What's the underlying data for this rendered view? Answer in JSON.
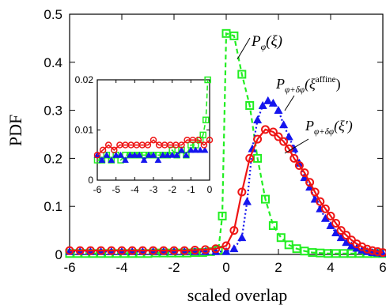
{
  "chart_data": [
    {
      "type": "line",
      "role": "main",
      "xlabel": "scaled overlap",
      "ylabel": "PDF",
      "xlim": [
        -6,
        6
      ],
      "ylim": [
        0,
        0.5
      ],
      "xticks": [
        -6,
        -4,
        -2,
        0,
        2,
        4,
        6
      ],
      "yticks": [
        0,
        0.1,
        0.2,
        0.3,
        0.4,
        0.5
      ],
      "xtick_labels": [
        "-6",
        "-4",
        "-2",
        "0",
        "2",
        "4",
        "6"
      ],
      "ytick_labels": [
        "0",
        "0.1",
        "0.2",
        "0.3",
        "0.4",
        "0.5"
      ],
      "grid": false,
      "series": [
        {
          "id": "green",
          "color": "#22ee22",
          "marker": "square",
          "line": "dashed",
          "x": [
            -6,
            -5.7,
            -5.4,
            -5.1,
            -4.8,
            -4.5,
            -4.2,
            -3.9,
            -3.6,
            -3.3,
            -3.0,
            -2.7,
            -2.4,
            -2.1,
            -1.8,
            -1.5,
            -1.2,
            -0.9,
            -0.6,
            -0.3,
            -0.15,
            0.0,
            0.3,
            0.6,
            0.9,
            1.2,
            1.5,
            1.8,
            2.1,
            2.4,
            2.7,
            3.0,
            3.3,
            3.6,
            3.9,
            4.2,
            4.5,
            4.8,
            5.1,
            5.4,
            5.7,
            6.0
          ],
          "y": [
            0.002,
            0.002,
            0.002,
            0.002,
            0.002,
            0.002,
            0.002,
            0.002,
            0.002,
            0.002,
            0.002,
            0.003,
            0.003,
            0.003,
            0.003,
            0.003,
            0.004,
            0.004,
            0.006,
            0.009,
            0.08,
            0.46,
            0.455,
            0.375,
            0.31,
            0.2,
            0.115,
            0.06,
            0.035,
            0.02,
            0.012,
            0.007,
            0.004,
            0.003,
            0.002,
            0.002,
            0.002,
            0.002,
            0.002,
            0.002,
            0.002,
            0.002
          ]
        },
        {
          "id": "blue",
          "color": "#1515ee",
          "marker": "triangle",
          "line": "dotted",
          "x": [
            -6,
            -5.6,
            -5.2,
            -4.8,
            -4.4,
            -4.0,
            -3.6,
            -3.2,
            -2.8,
            -2.4,
            -2.0,
            -1.6,
            -1.2,
            -0.8,
            -0.4,
            0.0,
            0.3,
            0.6,
            0.8,
            1.0,
            1.2,
            1.4,
            1.6,
            1.8,
            2.0,
            2.2,
            2.4,
            2.6,
            2.8,
            3.0,
            3.2,
            3.4,
            3.6,
            3.8,
            4.0,
            4.2,
            4.4,
            4.6,
            4.8,
            5.0,
            5.2,
            5.4,
            5.6,
            5.8,
            6.0
          ],
          "y": [
            0.006,
            0.006,
            0.006,
            0.006,
            0.006,
            0.006,
            0.006,
            0.006,
            0.006,
            0.006,
            0.006,
            0.006,
            0.006,
            0.006,
            0.006,
            0.006,
            0.012,
            0.035,
            0.11,
            0.22,
            0.28,
            0.31,
            0.32,
            0.315,
            0.3,
            0.27,
            0.245,
            0.22,
            0.19,
            0.16,
            0.14,
            0.115,
            0.095,
            0.075,
            0.06,
            0.045,
            0.035,
            0.025,
            0.018,
            0.013,
            0.009,
            0.006,
            0.004,
            0.003,
            0.002
          ]
        },
        {
          "id": "red",
          "color": "#ee1515",
          "marker": "circle",
          "line": "solid",
          "x": [
            -6,
            -5.6,
            -5.2,
            -4.8,
            -4.4,
            -4.0,
            -3.6,
            -3.2,
            -2.8,
            -2.4,
            -2.0,
            -1.6,
            -1.2,
            -0.8,
            -0.4,
            0.0,
            0.3,
            0.6,
            0.9,
            1.2,
            1.5,
            1.8,
            2.0,
            2.2,
            2.4,
            2.6,
            2.8,
            3.0,
            3.2,
            3.4,
            3.6,
            3.8,
            4.0,
            4.2,
            4.4,
            4.6,
            4.8,
            5.0,
            5.2,
            5.4,
            5.6,
            5.8,
            6.0
          ],
          "y": [
            0.008,
            0.008,
            0.008,
            0.008,
            0.008,
            0.008,
            0.008,
            0.008,
            0.008,
            0.008,
            0.008,
            0.008,
            0.009,
            0.01,
            0.012,
            0.018,
            0.05,
            0.13,
            0.2,
            0.24,
            0.26,
            0.255,
            0.245,
            0.235,
            0.22,
            0.2,
            0.185,
            0.17,
            0.15,
            0.13,
            0.11,
            0.095,
            0.08,
            0.065,
            0.05,
            0.04,
            0.03,
            0.022,
            0.016,
            0.011,
            0.008,
            0.006,
            0.004
          ]
        }
      ],
      "annotations": [
        {
          "text": "P",
          "sub": "φ",
          "rest": "(ξ)",
          "sup": ""
        },
        {
          "text": "P",
          "sub": "φ+δφ",
          "rest": "(ξ",
          "sup": "affine",
          "close": ")"
        },
        {
          "text": "P",
          "sub": "φ+δφ",
          "rest": "(ξ′)",
          "sup": ""
        }
      ]
    },
    {
      "type": "line",
      "role": "inset",
      "xlim": [
        -6,
        0
      ],
      "ylim": [
        0,
        0.02
      ],
      "xticks": [
        -6,
        -5,
        -4,
        -3,
        -2,
        -1,
        0
      ],
      "yticks": [
        0,
        0.01,
        0.02
      ],
      "xtick_labels": [
        "-6",
        "-5",
        "-4",
        "-3",
        "-2",
        "-1",
        "0"
      ],
      "ytick_labels": [
        "0",
        "0.01",
        "0.02"
      ],
      "series": [
        {
          "id": "green",
          "color": "#22ee22",
          "marker": "square",
          "line": "dashed",
          "x": [
            -6,
            -5.75,
            -5.5,
            -5.25,
            -5.0,
            -4.75,
            -4.5,
            -4.25,
            -4.0,
            -3.75,
            -3.5,
            -3.25,
            -3.0,
            -2.75,
            -2.5,
            -2.25,
            -2.0,
            -1.75,
            -1.5,
            -1.25,
            -1.0,
            -0.75,
            -0.5,
            -0.35,
            -0.2,
            -0.1
          ],
          "y": [
            0.004,
            0.004,
            0.005,
            0.004,
            0.005,
            0.004,
            0.005,
            0.005,
            0.005,
            0.005,
            0.005,
            0.005,
            0.005,
            0.005,
            0.005,
            0.005,
            0.006,
            0.005,
            0.006,
            0.005,
            0.007,
            0.007,
            0.008,
            0.009,
            0.012,
            0.02
          ]
        },
        {
          "id": "blue",
          "color": "#1515ee",
          "marker": "triangle",
          "line": "dotted",
          "x": [
            -6,
            -5.75,
            -5.5,
            -5.25,
            -5.0,
            -4.75,
            -4.5,
            -4.25,
            -4.0,
            -3.75,
            -3.5,
            -3.25,
            -3.0,
            -2.75,
            -2.5,
            -2.25,
            -2.0,
            -1.75,
            -1.5,
            -1.25,
            -1.0,
            -0.75,
            -0.5,
            -0.25
          ],
          "y": [
            0.005,
            0.004,
            0.005,
            0.004,
            0.005,
            0.005,
            0.004,
            0.005,
            0.005,
            0.005,
            0.004,
            0.005,
            0.005,
            0.004,
            0.005,
            0.005,
            0.005,
            0.005,
            0.006,
            0.005,
            0.006,
            0.006,
            0.006,
            0.006
          ]
        },
        {
          "id": "red",
          "color": "#ee1515",
          "marker": "circle",
          "line": "solid",
          "x": [
            -6,
            -5.7,
            -5.4,
            -5.1,
            -4.8,
            -4.5,
            -4.2,
            -3.9,
            -3.6,
            -3.3,
            -3.0,
            -2.7,
            -2.4,
            -2.1,
            -1.8,
            -1.5,
            -1.2,
            -0.9,
            -0.6,
            -0.3,
            0.0
          ],
          "y": [
            0.005,
            0.006,
            0.007,
            0.006,
            0.007,
            0.007,
            0.007,
            0.007,
            0.007,
            0.007,
            0.008,
            0.007,
            0.007,
            0.007,
            0.007,
            0.007,
            0.008,
            0.008,
            0.008,
            0.007,
            0.008
          ]
        }
      ]
    }
  ]
}
